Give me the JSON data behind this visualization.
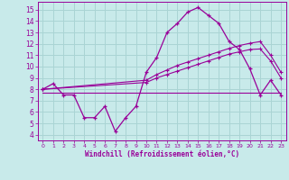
{
  "xlabel": "Windchill (Refroidissement éolien,°C)",
  "bg_color": "#c8eaea",
  "grid_color": "#aad4d4",
  "line_color": "#990099",
  "x_ticks": [
    0,
    1,
    2,
    3,
    4,
    5,
    6,
    7,
    8,
    9,
    10,
    11,
    12,
    13,
    14,
    15,
    16,
    17,
    18,
    19,
    20,
    21,
    22,
    23
  ],
  "y_ticks": [
    4,
    5,
    6,
    7,
    8,
    9,
    10,
    11,
    12,
    13,
    14,
    15
  ],
  "ylim": [
    3.5,
    15.7
  ],
  "xlim": [
    -0.5,
    23.5
  ],
  "line1_x": [
    0,
    1,
    2,
    3,
    4,
    5,
    6,
    7,
    8,
    9,
    10,
    11,
    12,
    13,
    14,
    15,
    16,
    17,
    18,
    19,
    20,
    21,
    22,
    23
  ],
  "line1_y": [
    8.0,
    8.5,
    7.5,
    7.5,
    5.5,
    5.5,
    6.5,
    4.3,
    5.5,
    6.5,
    9.5,
    10.8,
    13.0,
    13.8,
    14.8,
    15.2,
    14.5,
    13.8,
    12.2,
    11.5,
    9.8,
    7.5,
    8.8,
    7.5
  ],
  "line2_x": [
    0,
    23
  ],
  "line2_y": [
    7.7,
    7.7
  ],
  "line3_x": [
    0,
    10,
    11,
    12,
    13,
    14,
    15,
    16,
    17,
    18,
    19,
    20,
    21,
    22,
    23
  ],
  "line3_y": [
    8.0,
    8.8,
    9.3,
    9.7,
    10.1,
    10.4,
    10.7,
    11.0,
    11.3,
    11.6,
    11.85,
    12.05,
    12.2,
    11.0,
    9.5
  ],
  "line4_x": [
    0,
    10,
    11,
    12,
    13,
    14,
    15,
    16,
    17,
    18,
    19,
    20,
    21,
    22,
    23
  ],
  "line4_y": [
    8.0,
    8.6,
    9.0,
    9.3,
    9.6,
    9.9,
    10.2,
    10.5,
    10.8,
    11.1,
    11.3,
    11.5,
    11.55,
    10.5,
    9.0
  ]
}
